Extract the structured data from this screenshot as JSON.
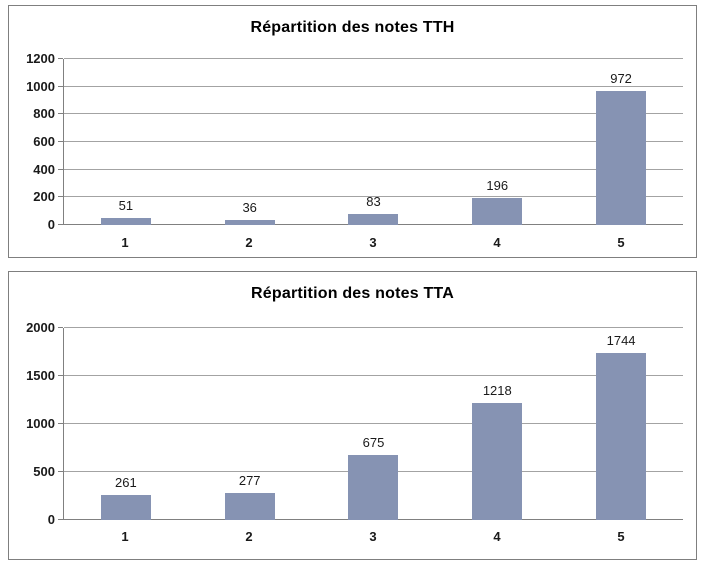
{
  "colors": {
    "bar_fill": "#8693B3",
    "gridline": "#A3A3A3",
    "axis_line": "#808080",
    "card_border": "#7F7F7F",
    "title_text": "#000000",
    "tick_label_text": "#1A1A1A",
    "data_label_text": "#1A1A1A",
    "background": "#FFFFFF"
  },
  "chart_data": [
    {
      "type": "bar",
      "title": "Répartition des notes TTH",
      "categories": [
        "1",
        "2",
        "3",
        "4",
        "5"
      ],
      "values": [
        51,
        36,
        83,
        196,
        972
      ],
      "data_labels": [
        51,
        36,
        83,
        196,
        972
      ],
      "xlabel": "",
      "ylabel": "",
      "ylim": [
        0,
        1200
      ],
      "ytick_step": 200,
      "yticks": [
        0,
        200,
        400,
        600,
        800,
        1000,
        1200
      ],
      "grid": true,
      "legend": "none"
    },
    {
      "type": "bar",
      "title": "Répartition des notes TTA",
      "categories": [
        "1",
        "2",
        "3",
        "4",
        "5"
      ],
      "values": [
        261,
        277,
        675,
        1218,
        1744
      ],
      "data_labels": [
        261,
        277,
        675,
        1218,
        1744
      ],
      "xlabel": "",
      "ylabel": "",
      "ylim": [
        0,
        2000
      ],
      "ytick_step": 500,
      "yticks": [
        0,
        500,
        1000,
        1500,
        2000
      ],
      "grid": true,
      "legend": "none"
    }
  ]
}
